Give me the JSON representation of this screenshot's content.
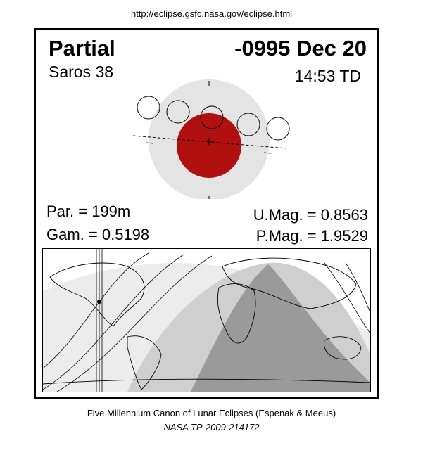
{
  "header": {
    "url": "http://eclipse.gsfc.nasa.gov/eclipse.html"
  },
  "eclipse": {
    "type": "Partial",
    "date": "-0995 Dec 20",
    "saros": "Saros  38",
    "time": "14:53 TD",
    "par": "Par. = 199m",
    "gam": "Gam. = 0.5198",
    "umag": "U.Mag. = 0.8563",
    "pmag": "P.Mag. = 1.9529"
  },
  "colors": {
    "umbra": "#b01010",
    "penumbra": "#e4e4e4",
    "map_dark": "#999999",
    "map_mid": "#c4c4c4",
    "map_light": "#e6e6e6"
  },
  "footer": {
    "line1": "Five Millennium Canon of Lunar Eclipses (Espenak & Meeus)",
    "line2": "NASA TP-2009-214172"
  }
}
